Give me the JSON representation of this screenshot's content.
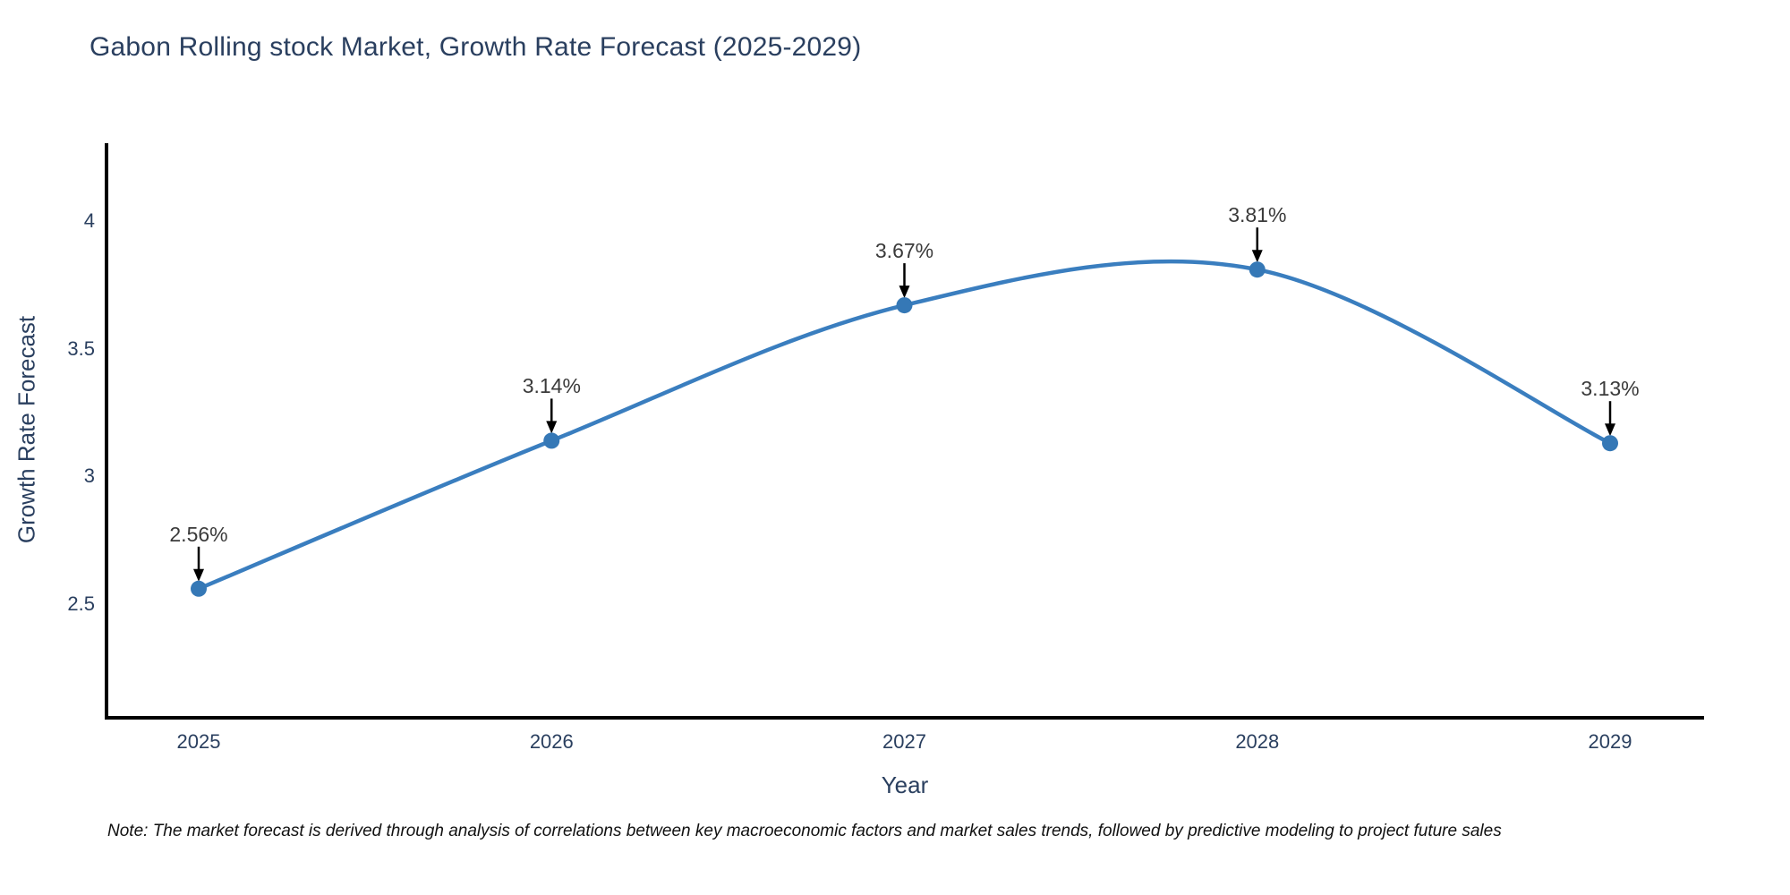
{
  "chart_data": {
    "type": "line",
    "title": "Gabon Rolling stock Market, Growth Rate Forecast (2025-2029)",
    "categories": [
      "2025",
      "2026",
      "2027",
      "2028",
      "2029"
    ],
    "values": [
      2.56,
      3.14,
      3.67,
      3.81,
      3.13
    ],
    "point_labels": [
      "2.56%",
      "3.14%",
      "3.67%",
      "3.81%",
      "3.13%"
    ],
    "series_name": "Growth Rate Forecast",
    "xlabel": "Year",
    "ylabel": "Growth Rate Forecast",
    "y_ticks": [
      {
        "v": 4,
        "label": "4"
      },
      {
        "v": 3.5,
        "label": "3.5"
      },
      {
        "v": 3,
        "label": "3"
      },
      {
        "v": 2.5,
        "label": "2.5"
      }
    ],
    "ylim": [
      2.06,
      4.31
    ],
    "line_shape": "spline",
    "grid": false,
    "legend": "none",
    "colors": {
      "line": "#3a7ebf",
      "marker": "#3578b6",
      "axis": "#000000",
      "annotation_arrow": "#000000",
      "title_text": "#2a3f5f",
      "tick_text": "#2a3f5f",
      "point_label_text": "#3a3a3a",
      "note_text": "#111111",
      "background": "#ffffff"
    },
    "note": "Note: The market forecast is derived through analysis of correlations between key macroeconomic factors and market sales trends, followed by predictive modeling to project future sales"
  }
}
